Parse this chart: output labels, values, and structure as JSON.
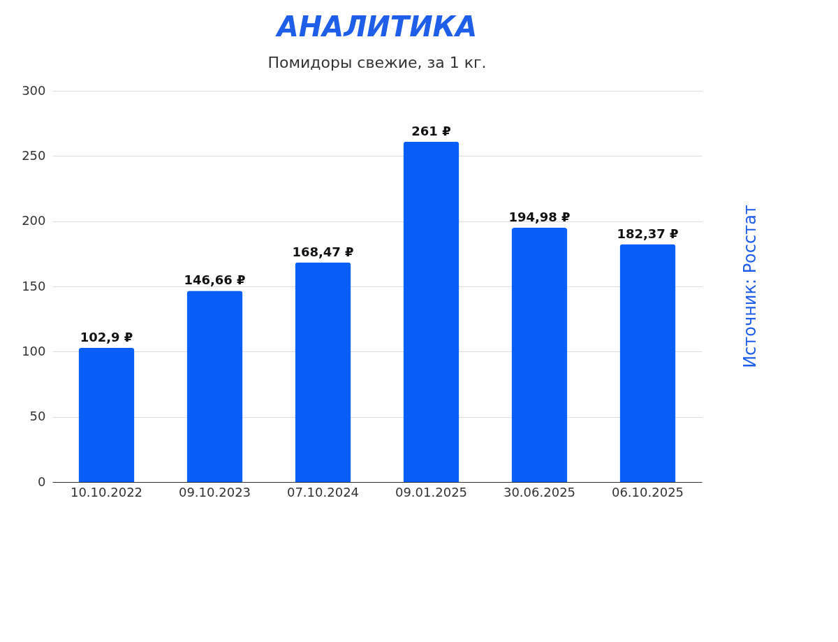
{
  "chart_data": {
    "type": "bar",
    "title": "АНАЛИТИКА",
    "subtitle": "Помидоры свежие, за 1 кг.",
    "categories": [
      "10.10.2022",
      "09.10.2023",
      "07.10.2024",
      "09.01.2025",
      "30.06.2025",
      "06.10.2025"
    ],
    "values": [
      102.9,
      146.66,
      168.47,
      261,
      194.98,
      182.37
    ],
    "value_labels": [
      "102,9 ₽",
      "146,66 ₽",
      "168,47 ₽",
      "261 ₽",
      "194,98 ₽",
      "182,37 ₽"
    ],
    "color": "#0a5ef8",
    "ylim": [
      0,
      300
    ],
    "yticks": [
      0,
      50,
      100,
      150,
      200,
      250,
      300
    ],
    "grid": "y",
    "annotations": [
      "Источник: Росстат"
    ]
  }
}
